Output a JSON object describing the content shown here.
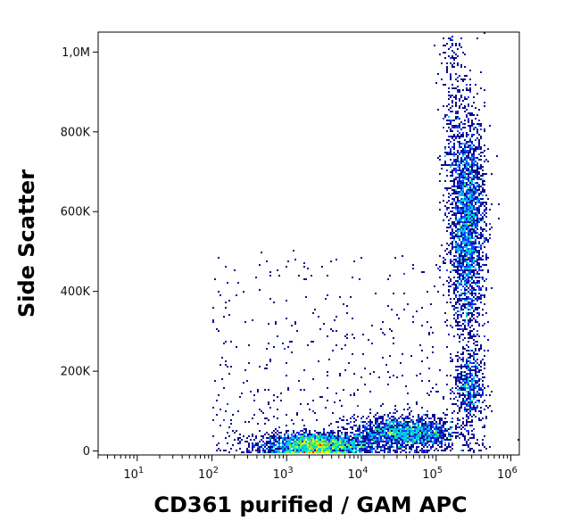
{
  "chart_data": {
    "type": "scatter",
    "title": "",
    "xlabel": "CD361 purified / GAM APC",
    "ylabel": "Side Scatter",
    "x_scale": "log",
    "xlim": [
      3,
      1300000
    ],
    "ylim": [
      -10000,
      1050000
    ],
    "x_ticks": [
      {
        "value": 10,
        "base": "10",
        "exp": "1"
      },
      {
        "value": 100,
        "base": "10",
        "exp": "2"
      },
      {
        "value": 1000,
        "base": "10",
        "exp": "3"
      },
      {
        "value": 10000,
        "base": "10",
        "exp": "4"
      },
      {
        "value": 100000,
        "base": "10",
        "exp": "5"
      },
      {
        "value": 1000000,
        "base": "10",
        "exp": "6"
      }
    ],
    "y_ticks": [
      {
        "value": 0,
        "label": "0"
      },
      {
        "value": 200000,
        "label": "200K"
      },
      {
        "value": 400000,
        "label": "400K"
      },
      {
        "value": 600000,
        "label": "600K"
      },
      {
        "value": 800000,
        "label": "800K"
      },
      {
        "value": 1000000,
        "label": "1,0M"
      }
    ],
    "grid": false,
    "legend": "none",
    "density_colors": [
      "#0a0a8c",
      "#1a3cff",
      "#00b4ff",
      "#00e0c0",
      "#6cff3c",
      "#e6ff00",
      "#ffa000",
      "#e61e00"
    ],
    "populations": [
      {
        "x_center": 2500,
        "y_center": 15000,
        "x_spread": 0.35,
        "y_spread": 15000,
        "count": 2200
      },
      {
        "x_center": 40000,
        "y_center": 45000,
        "x_spread": 0.35,
        "y_spread": 20000,
        "count": 1600
      },
      {
        "x_center": 260000,
        "y_center": 570000,
        "x_spread": 0.12,
        "y_spread": 140000,
        "count": 2600
      },
      {
        "x_center": 280000,
        "y_center": 160000,
        "x_spread": 0.1,
        "y_spread": 45000,
        "count": 500
      }
    ]
  }
}
